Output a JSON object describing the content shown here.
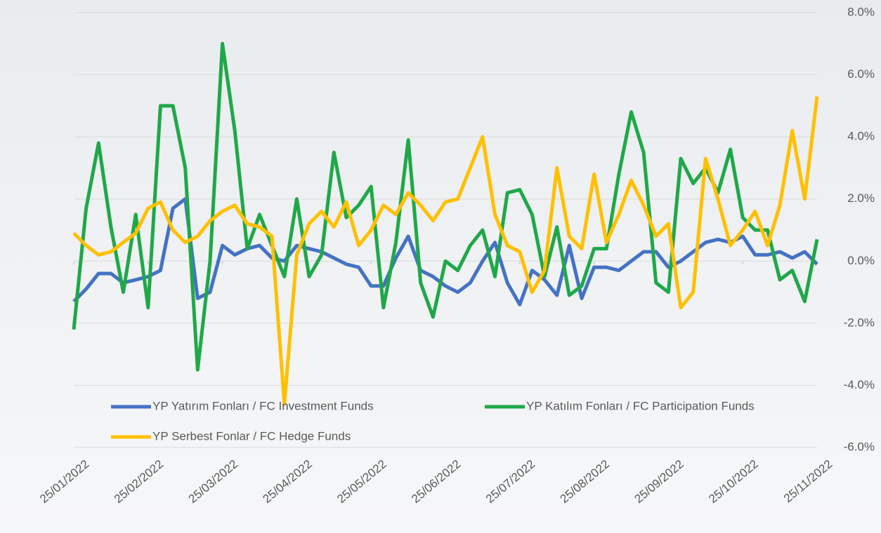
{
  "chart_data": {
    "type": "line",
    "categories": [
      "25/01/2022",
      null,
      null,
      null,
      null,
      null,
      "25/02/2022",
      null,
      null,
      null,
      null,
      null,
      "25/03/2022",
      null,
      null,
      null,
      null,
      null,
      "25/04/2022",
      null,
      null,
      null,
      null,
      null,
      "25/05/2022",
      null,
      null,
      null,
      null,
      null,
      "25/06/2022",
      null,
      null,
      null,
      null,
      null,
      "25/07/2022",
      null,
      null,
      null,
      null,
      null,
      "25/08/2022",
      null,
      null,
      null,
      null,
      null,
      "25/09/2022",
      null,
      null,
      null,
      null,
      null,
      "25/10/2022",
      null,
      null,
      null,
      null,
      null,
      "25/11/2022"
    ],
    "series": [
      {
        "name": "YP Yatırım Fonları / FC Investment Funds",
        "color": "#4472c4",
        "values": [
          -1.3,
          -0.9,
          -0.4,
          -0.4,
          -0.7,
          -0.6,
          -0.5,
          -0.3,
          1.7,
          2.0,
          -1.2,
          -1.0,
          0.5,
          0.2,
          0.4,
          0.5,
          0.1,
          0.0,
          0.5,
          0.4,
          0.3,
          0.1,
          -0.1,
          -0.2,
          -0.8,
          -0.8,
          0.1,
          0.8,
          -0.3,
          -0.5,
          -0.8,
          -1.0,
          -0.7,
          0.0,
          0.6,
          -0.7,
          -1.4,
          -0.3,
          -0.6,
          -1.1,
          0.5,
          -1.2,
          -0.2,
          -0.2,
          -0.3,
          0.0,
          0.3,
          0.3,
          -0.2,
          0.0,
          0.3,
          0.6,
          0.7,
          0.6,
          0.8,
          0.2,
          0.2,
          0.3,
          0.1,
          0.3,
          -0.1
        ]
      },
      {
        "name": "YP Katılım Fonları / FC Participation Funds",
        "color": "#1fa848",
        "values": [
          -2.2,
          1.7,
          3.8,
          1.1,
          -1.0,
          1.5,
          -1.5,
          5.0,
          5.0,
          3.0,
          -3.5,
          0.0,
          7.0,
          4.2,
          0.4,
          1.5,
          0.5,
          -0.5,
          2.0,
          -0.5,
          0.2,
          3.5,
          1.4,
          1.8,
          2.4,
          -1.5,
          0.6,
          3.9,
          -0.7,
          -1.8,
          0.0,
          -0.3,
          0.5,
          1.0,
          -0.5,
          2.2,
          2.3,
          1.5,
          -0.5,
          1.1,
          -1.1,
          -0.8,
          0.4,
          0.4,
          2.8,
          4.8,
          3.5,
          -0.7,
          -1.0,
          3.3,
          2.5,
          3.0,
          2.2,
          3.6,
          1.4,
          1.0,
          1.0,
          -0.6,
          -0.3,
          -1.3,
          0.7
        ]
      },
      {
        "name": "YP Serbest Fonlar / FC Hedge Funds",
        "color": "#ffc000",
        "values": [
          0.9,
          0.5,
          0.2,
          0.3,
          0.6,
          0.9,
          1.7,
          1.9,
          1.0,
          0.6,
          0.8,
          1.3,
          1.6,
          1.8,
          1.2,
          1.1,
          0.8,
          -4.6,
          0.2,
          1.2,
          1.6,
          1.1,
          1.9,
          0.5,
          1.0,
          1.8,
          1.5,
          2.2,
          1.8,
          1.3,
          1.9,
          2.0,
          3.0,
          4.0,
          1.5,
          0.5,
          0.3,
          -1.0,
          -0.3,
          3.0,
          0.8,
          0.4,
          2.8,
          0.6,
          1.5,
          2.6,
          1.8,
          0.8,
          1.2,
          -1.5,
          -1.0,
          3.3,
          2.0,
          0.5,
          1.0,
          1.6,
          0.5,
          1.8,
          4.2,
          2.0,
          5.3
        ]
      }
    ],
    "ylim": [
      -6,
      8
    ],
    "yticks": [
      {
        "value": -6,
        "label": "-6.0%"
      },
      {
        "value": -4,
        "label": "-4.0%"
      },
      {
        "value": -2,
        "label": "-2.0%"
      },
      {
        "value": 0,
        "label": "0.0%"
      },
      {
        "value": 2,
        "label": "2.0%"
      },
      {
        "value": 4,
        "label": "4.0%"
      },
      {
        "value": 6,
        "label": "6.0%"
      },
      {
        "value": 8,
        "label": "8.0%"
      }
    ],
    "grid": true
  }
}
